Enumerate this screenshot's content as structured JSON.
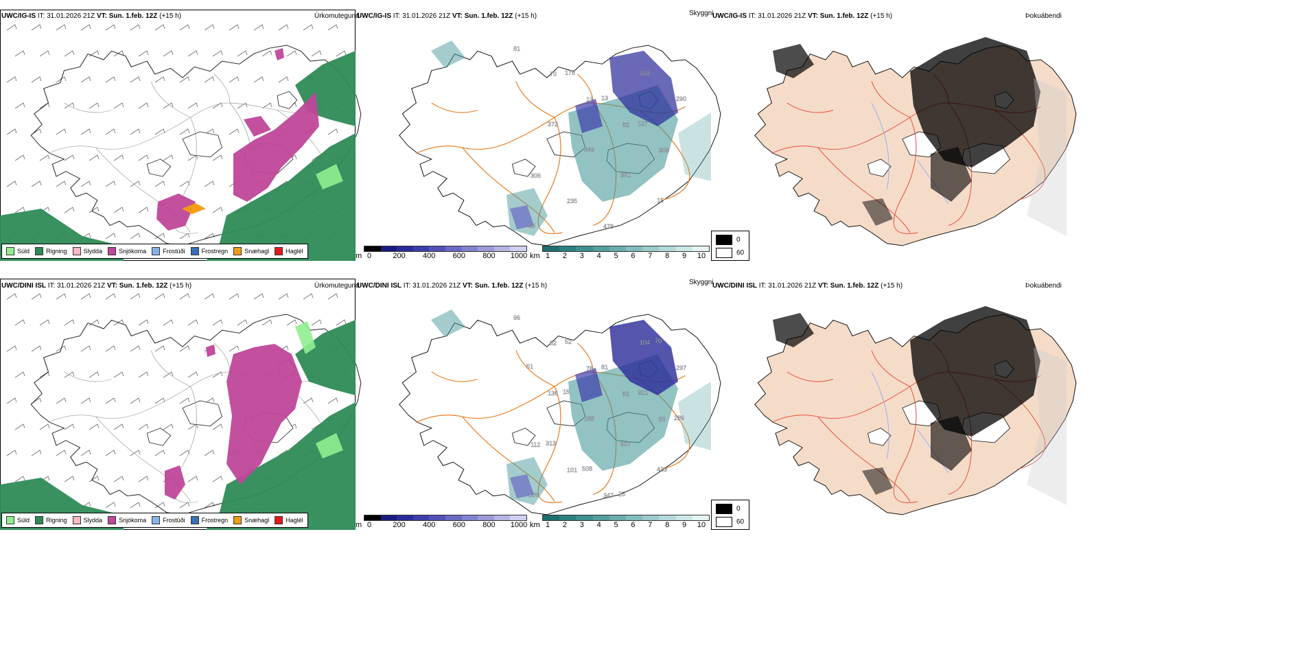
{
  "panels": [
    {
      "model": "UWC/IG-IS",
      "it_label": "IT:",
      "it": "31.01.2026 21Z",
      "vt_label": "VT:",
      "vt": "Sun. 1.feb. 12Z",
      "lead": "(+15 h)",
      "right": "Úrkomutegund"
    },
    {
      "model": "UWC/IG-IS",
      "it_label": "IT:",
      "it": "31.01.2026 21Z",
      "vt_label": "VT:",
      "vt": "Sun. 1.feb. 12Z",
      "lead": "(+15 h)",
      "right": "Skyggni"
    },
    {
      "model": "UWC/IG-IS",
      "it_label": "IT:",
      "it": "31.01.2026 21Z",
      "vt_label": "VT:",
      "vt": "Sun. 1.feb. 12Z",
      "lead": "(+15 h)",
      "right": "Þokuábendi"
    },
    {
      "model": "UWC/DINI ISL",
      "it_label": "IT:",
      "it": "31.01.2026 21Z",
      "vt_label": "VT:",
      "vt": "Sun. 1.feb. 12Z",
      "lead": "(+15 h)",
      "right": "Úrkomutegund"
    },
    {
      "model": "UWC/DINI ISL",
      "it_label": "IT:",
      "it": "31.01.2026 21Z",
      "vt_label": "VT:",
      "vt": "Sun. 1.feb. 12Z",
      "lead": "(+15 h)",
      "right": "Skyggni"
    },
    {
      "model": "UWC/DINI ISL",
      "it_label": "IT:",
      "it": "31.01.2026 21Z",
      "vt_label": "VT:",
      "vt": "Sun. 1.feb. 12Z",
      "lead": "(+15 h)",
      "right": "Þokuábendi"
    }
  ],
  "precip_legend": [
    {
      "label": "Súld",
      "color": "#90ee90"
    },
    {
      "label": "Rigning",
      "color": "#2e8b57"
    },
    {
      "label": "Slydda",
      "color": "#ffb6c1"
    },
    {
      "label": "Snjókoma",
      "color": "#c0479a"
    },
    {
      "label": "Frostúði",
      "color": "#87b4e8"
    },
    {
      "label": "Frostregn",
      "color": "#3a6fb7"
    },
    {
      "label": "Snæhagl",
      "color": "#f39c12"
    },
    {
      "label": "Haglél",
      "color": "#e31a1c"
    }
  ],
  "visibility_m": {
    "unit": "m",
    "ticks": [
      "0",
      "200",
      "400",
      "600",
      "800",
      "1000"
    ],
    "colors": [
      "#000000",
      "#1a1a80",
      "#2a2a9a",
      "#3d3dab",
      "#5151b8",
      "#6a6ac4",
      "#8282cf",
      "#9b9bd9",
      "#b5b5e3",
      "#d0d0ee"
    ]
  },
  "visibility_km": {
    "unit": "km",
    "ticks": [
      "1",
      "2",
      "3",
      "4",
      "5",
      "6",
      "7",
      "8",
      "9",
      "10"
    ],
    "colors": [
      "#1f6f6f",
      "#2d8080",
      "#3f8f8f",
      "#549e9e",
      "#6aadad",
      "#82bcbc",
      "#9bcbcb",
      "#b4d9d9",
      "#cde7e7",
      "#e6f3f3"
    ]
  },
  "cloud_key": {
    "top": "0",
    "bottom": "60"
  },
  "vis_labels_top": [
    "81",
    "70",
    "13",
    "82",
    "308",
    "306",
    "235",
    "478",
    "468",
    "290",
    "372",
    "349",
    "301",
    "15",
    "95",
    "178",
    "13",
    "127"
  ],
  "vis_labels_bottom": [
    "96",
    "82",
    "78",
    "52",
    "50",
    "112",
    "101",
    "347",
    "104",
    "297",
    "136",
    "188",
    "607",
    "433",
    "186",
    "52",
    "81",
    "321",
    "286",
    "313",
    "508",
    "25",
    "70",
    "51",
    "15"
  ]
}
